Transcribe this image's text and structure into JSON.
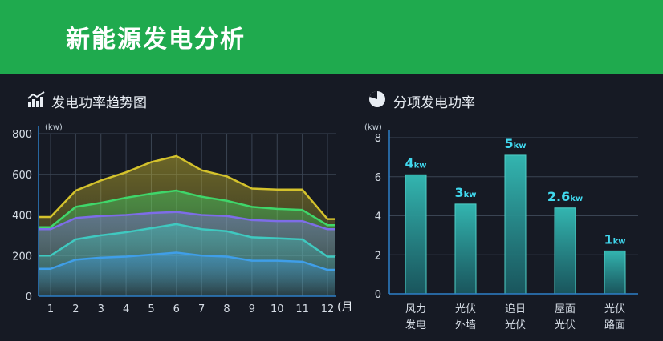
{
  "header": {
    "title": "新能源发电分析"
  },
  "colors": {
    "header_bg": "#1faa4e",
    "dashboard_bg": "#161a24",
    "axis": "#2d7fc8",
    "bar": "#33b5b0",
    "bar_label": "#41d8ee"
  },
  "icons": {
    "left_panel": "chart-trend-icon",
    "right_panel": "pie-chart-icon"
  },
  "chart_data": [
    {
      "type": "area",
      "title": "发电功率趋势图",
      "unit_label": "(kw)",
      "x_label": "(月)",
      "x": [
        "1",
        "2",
        "3",
        "4",
        "5",
        "6",
        "7",
        "8",
        "9",
        "10",
        "11",
        "12"
      ],
      "ylim": [
        0,
        800
      ],
      "y_ticks": [
        "0",
        "200",
        "400",
        "600",
        "800"
      ],
      "grid": true,
      "series": [
        {
          "color": "#d4c22c",
          "values": [
            390,
            520,
            570,
            610,
            660,
            690,
            620,
            590,
            530,
            525,
            525,
            380
          ]
        },
        {
          "color": "#3fd66a",
          "values": [
            340,
            440,
            460,
            485,
            505,
            520,
            490,
            470,
            440,
            430,
            425,
            350
          ]
        },
        {
          "color": "#7d6de8",
          "values": [
            330,
            385,
            395,
            400,
            410,
            415,
            400,
            395,
            375,
            370,
            370,
            330
          ]
        },
        {
          "color": "#3fc9c0",
          "values": [
            200,
            280,
            300,
            315,
            335,
            355,
            330,
            320,
            290,
            285,
            280,
            195
          ]
        },
        {
          "color": "#3f9ee8",
          "values": [
            135,
            180,
            190,
            195,
            205,
            215,
            200,
            195,
            175,
            175,
            170,
            130
          ]
        }
      ]
    },
    {
      "type": "bar",
      "title": "分项发电功率",
      "unit_label": "(kw)",
      "categories": [
        [
          "风力",
          "发电"
        ],
        [
          "光伏",
          "外墙"
        ],
        [
          "追日",
          "光伏"
        ],
        [
          "屋面",
          "光伏"
        ],
        [
          "光伏",
          "路面"
        ]
      ],
      "values": [
        4,
        3,
        5,
        2.6,
        1
      ],
      "bar_heights": [
        6.1,
        4.6,
        7.1,
        4.4,
        2.2
      ],
      "data_labels": [
        {
          "num": "4",
          "unit": "kw"
        },
        {
          "num": "3",
          "unit": "kw"
        },
        {
          "num": "5",
          "unit": "kw"
        },
        {
          "num": "2.6",
          "unit": "kw"
        },
        {
          "num": "1",
          "unit": "kw"
        }
      ],
      "ylim": [
        0,
        8
      ],
      "y_ticks": [
        "0",
        "2",
        "4",
        "6",
        "8"
      ],
      "grid": true
    }
  ]
}
